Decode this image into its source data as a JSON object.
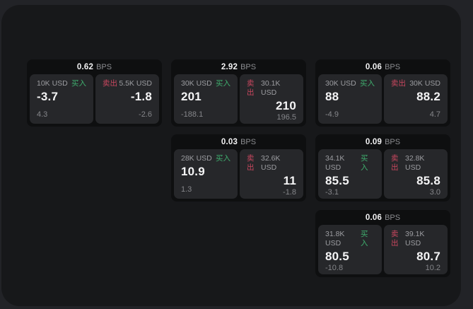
{
  "labels": {
    "bps_unit": "BPS",
    "buy": "买入",
    "sell": "卖出"
  },
  "colors": {
    "desktop_background": "#222327",
    "window_background": "#17181a",
    "card_background": "#0e0f10",
    "panel_background": "#26272a",
    "buy_accent": "#3fae6e",
    "sell_accent": "#c9475f",
    "primary_text": "#f4f4f5",
    "muted_text": "#85868a"
  },
  "cards": [
    {
      "bps": "0.62",
      "buy": {
        "amount": "10K USD",
        "price": "-3.7",
        "delta": "4.3"
      },
      "sell": {
        "amount": "5.5K USD",
        "price": "-1.8",
        "delta": "-2.6"
      }
    },
    {
      "bps": "2.92",
      "buy": {
        "amount": "30K USD",
        "price": "201",
        "delta": "-188.1"
      },
      "sell": {
        "amount": "30.1K USD",
        "price": "210",
        "delta": "196.5"
      }
    },
    {
      "bps": "0.06",
      "buy": {
        "amount": "30K USD",
        "price": "88",
        "delta": "-4.9"
      },
      "sell": {
        "amount": "30K USD",
        "price": "88.2",
        "delta": "4.7"
      }
    },
    {
      "bps": "0.03",
      "buy": {
        "amount": "28K USD",
        "price": "10.9",
        "delta": "1.3"
      },
      "sell": {
        "amount": "32.6K USD",
        "price": "11",
        "delta": "-1.8"
      }
    },
    {
      "bps": "0.09",
      "buy": {
        "amount": "34.1K USD",
        "price": "85.5",
        "delta": "-3.1"
      },
      "sell": {
        "amount": "32.8K USD",
        "price": "85.8",
        "delta": "3.0"
      }
    },
    {
      "bps": "0.06",
      "buy": {
        "amount": "31.8K USD",
        "price": "80.5",
        "delta": "-10.8"
      },
      "sell": {
        "amount": "39.1K USD",
        "price": "80.7",
        "delta": "10.2"
      }
    }
  ]
}
